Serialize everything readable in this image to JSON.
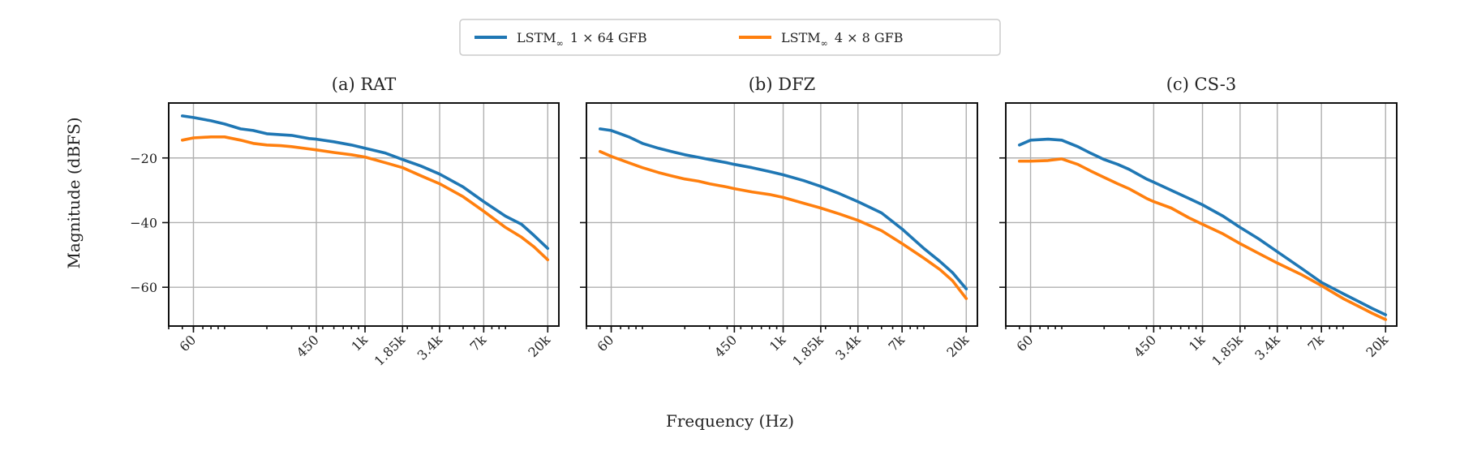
{
  "legend": {
    "items": [
      {
        "label_main": "LSTM",
        "label_sub": "∞",
        "label_rest": "1 × 64 GFB",
        "color": "#1f77b4"
      },
      {
        "label_main": "LSTM",
        "label_sub": "∞",
        "label_rest": "4 × 8 GFB",
        "color": "#ff7f0e"
      }
    ],
    "placement": "top-center"
  },
  "axes": {
    "xlabel": "Frequency (Hz)",
    "ylabel": "Magnitude (dBFS)"
  },
  "chart_data": [
    {
      "type": "line",
      "title": "(a) RAT",
      "x_scale": "log",
      "xlim": [
        40,
        24000
      ],
      "ylim": [
        -72,
        -3
      ],
      "xticks": [
        60,
        450,
        1000,
        1850,
        3400,
        7000,
        20000
      ],
      "xtick_labels": [
        "60",
        "450",
        "1k",
        "1.85k",
        "3.4k",
        "7k",
        "20k"
      ],
      "yticks": [
        -20,
        -40,
        -60
      ],
      "ytick_labels": [
        "−20",
        "−40",
        "−60"
      ],
      "grid": true,
      "x": [
        50,
        60,
        80,
        100,
        130,
        160,
        200,
        250,
        300,
        400,
        450,
        600,
        800,
        1000,
        1400,
        1850,
        2500,
        3400,
        5000,
        7000,
        10000,
        13000,
        16000,
        20000
      ],
      "series": [
        {
          "name": "LSTM∞ 1 × 64 GFB",
          "color": "#1f77b4",
          "values": [
            -7,
            -7.5,
            -8.5,
            -9.5,
            -11,
            -11.5,
            -12.5,
            -12.8,
            -13,
            -14,
            -14.2,
            -15,
            -16,
            -17,
            -18.5,
            -20.5,
            -22.5,
            -25,
            -29,
            -33.5,
            -38,
            -40.5,
            -44,
            -48
          ]
        },
        {
          "name": "LSTM∞ 4 × 8 GFB",
          "color": "#ff7f0e",
          "values": [
            -14.5,
            -13.8,
            -13.5,
            -13.5,
            -14.5,
            -15.5,
            -16,
            -16.2,
            -16.5,
            -17.2,
            -17.5,
            -18.3,
            -19,
            -19.7,
            -21.5,
            -23,
            -25.5,
            -28,
            -32,
            -36.5,
            -41.5,
            -44.5,
            -47.5,
            -51.5
          ]
        }
      ]
    },
    {
      "type": "line",
      "title": "(b) DFZ",
      "x_scale": "log",
      "xlim": [
        40,
        24000
      ],
      "ylim": [
        -72,
        -3
      ],
      "xticks": [
        60,
        450,
        1000,
        1850,
        3400,
        7000,
        20000
      ],
      "xtick_labels": [
        "60",
        "450",
        "1k",
        "1.85k",
        "3.4k",
        "7k",
        "20k"
      ],
      "yticks": [
        -20,
        -40,
        -60
      ],
      "grid": true,
      "x": [
        50,
        60,
        80,
        100,
        130,
        160,
        200,
        250,
        300,
        400,
        450,
        600,
        800,
        1000,
        1400,
        1850,
        2500,
        3400,
        5000,
        7000,
        10000,
        13000,
        16000,
        20000
      ],
      "series": [
        {
          "name": "LSTM∞ 1 × 64 GFB",
          "color": "#1f77b4",
          "values": [
            -11,
            -11.5,
            -13.5,
            -15.5,
            -17,
            -18,
            -19,
            -19.8,
            -20.5,
            -21.5,
            -22,
            -23,
            -24.2,
            -25.2,
            -27,
            -28.8,
            -31,
            -33.5,
            -37,
            -42,
            -48,
            -52,
            -55.5,
            -60.5
          ]
        },
        {
          "name": "LSTM∞ 4 × 8 GFB",
          "color": "#ff7f0e",
          "values": [
            -18,
            -19.5,
            -21.5,
            -23,
            -24.5,
            -25.5,
            -26.5,
            -27.2,
            -28,
            -29,
            -29.5,
            -30.5,
            -31.3,
            -32.2,
            -34,
            -35.5,
            -37.3,
            -39.3,
            -42.5,
            -46.5,
            -51,
            -54.5,
            -58,
            -63.5
          ]
        }
      ]
    },
    {
      "type": "line",
      "title": "(c) CS-3",
      "x_scale": "log",
      "xlim": [
        40,
        24000
      ],
      "ylim": [
        -72,
        -3
      ],
      "xticks": [
        60,
        450,
        1000,
        1850,
        3400,
        7000,
        20000
      ],
      "xtick_labels": [
        "60",
        "450",
        "1k",
        "1.85k",
        "3.4k",
        "7k",
        "20k"
      ],
      "yticks": [
        -20,
        -40,
        -60
      ],
      "grid": true,
      "x": [
        50,
        60,
        80,
        100,
        130,
        160,
        200,
        250,
        300,
        400,
        450,
        600,
        800,
        1000,
        1400,
        1850,
        2500,
        3400,
        5000,
        7000,
        10000,
        13000,
        16000,
        20000
      ],
      "series": [
        {
          "name": "LSTM∞ 1 × 64 GFB",
          "color": "#1f77b4",
          "values": [
            -16,
            -14.5,
            -14.2,
            -14.5,
            -16.5,
            -18.5,
            -20.5,
            -22,
            -23.5,
            -26.5,
            -27.5,
            -30,
            -32.5,
            -34.5,
            -38,
            -41.5,
            -45,
            -49,
            -54,
            -58.5,
            -62,
            -64.5,
            -66.5,
            -68.5
          ]
        },
        {
          "name": "LSTM∞ 4 × 8 GFB",
          "color": "#ff7f0e",
          "values": [
            -21,
            -21,
            -20.8,
            -20.3,
            -22,
            -24,
            -26,
            -28,
            -29.5,
            -32.5,
            -33.5,
            -35.5,
            -38.5,
            -40.5,
            -43.5,
            -46.5,
            -49.5,
            -52.5,
            -56,
            -59.5,
            -63.5,
            -66,
            -68,
            -70
          ]
        }
      ]
    }
  ]
}
